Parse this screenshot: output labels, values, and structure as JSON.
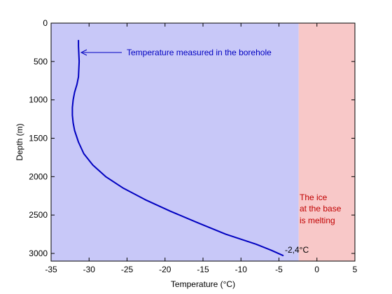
{
  "chart_data": {
    "type": "line",
    "title": "",
    "xlabel": "Temperature (°C)",
    "ylabel": "Depth (m)",
    "xlim": [
      -35,
      5
    ],
    "ylim": [
      0,
      3100
    ],
    "y_inverted": true,
    "grid": false,
    "x_ticks": [
      -35,
      -30,
      -25,
      -20,
      -15,
      -10,
      -5,
      0,
      5
    ],
    "y_ticks": [
      0,
      500,
      1000,
      1500,
      2000,
      2500,
      3000
    ],
    "regions": [
      {
        "x_from": -35,
        "x_to": -2.4,
        "color": "#c8c8f8"
      },
      {
        "x_from": -2.4,
        "x_to": 5,
        "color": "#f8c8c8"
      }
    ],
    "series": [
      {
        "color": "#0000c0",
        "x": [
          -31.4,
          -31.4,
          -31.3,
          -31.4,
          -31.6,
          -31.9,
          -32.1,
          -32.2,
          -32.2,
          -32.1,
          -31.9,
          -31.4,
          -30.7,
          -29.5,
          -27.8,
          -25.5,
          -22.6,
          -19.3,
          -15.7,
          -12.0,
          -8.0,
          -6.0,
          -4.4
        ],
        "y": [
          220,
          300,
          500,
          700,
          800,
          900,
          1000,
          1100,
          1200,
          1300,
          1400,
          1550,
          1700,
          1850,
          2000,
          2150,
          2300,
          2450,
          2600,
          2750,
          2880,
          2960,
          3030
        ]
      }
    ],
    "annotations": {
      "borehole": {
        "text": "Temperature measured in the borehole",
        "color": "#0000c0",
        "point": [
          -31.3,
          380
        ]
      },
      "melting": {
        "lines": [
          "The ice",
          "at the base",
          "is melting"
        ],
        "color": "#c00000"
      },
      "base_temp": {
        "text": "-2,4°C",
        "color": "#000000"
      }
    }
  }
}
